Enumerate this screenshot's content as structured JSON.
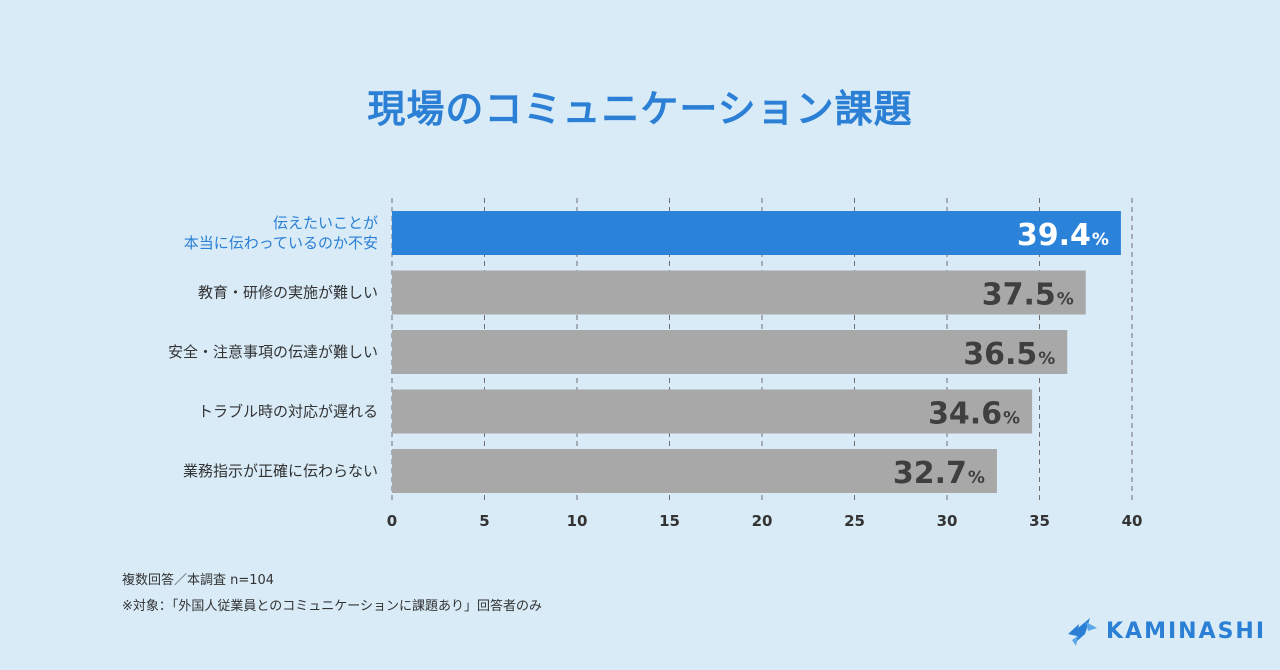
{
  "title": "現場のコミュニケーション課題",
  "chart_data": {
    "type": "bar",
    "orientation": "horizontal",
    "categories": [
      [
        "伝えたいことが",
        "本当に伝わっているのか不安"
      ],
      [
        "教育・研修の実施が難しい"
      ],
      [
        "安全・注意事項の伝達が難しい"
      ],
      [
        "トラブル時の対応が遅れる"
      ],
      [
        "業務指示が正確に伝わらない"
      ]
    ],
    "values": [
      39.4,
      37.5,
      36.5,
      34.6,
      32.7
    ],
    "value_labels": [
      "39.4",
      "37.5",
      "36.5",
      "34.6",
      "32.7"
    ],
    "unit": "%",
    "xlim": [
      0,
      40
    ],
    "xticks": [
      "0",
      "5",
      "10",
      "15",
      "20",
      "25",
      "30",
      "35",
      "40"
    ],
    "grid": "vertical dashed",
    "highlight_index": 0,
    "colors": {
      "highlight_bar": "#2b82d9",
      "bar": "#a8a8a8",
      "highlight_label": "#2b7fd4",
      "label": "#333333",
      "value_on_highlight": "#ffffff",
      "value": "#3f3f3f",
      "grid": "#707070"
    }
  },
  "footnotes": {
    "line1": "複数回答／本調査 n=104",
    "line2": "※対象：「外国人従業員とのコミュニケーションに課題あり」回答者のみ"
  },
  "logo": {
    "text": "KAMINASHI",
    "icon": "kaminashi-bird-icon"
  }
}
